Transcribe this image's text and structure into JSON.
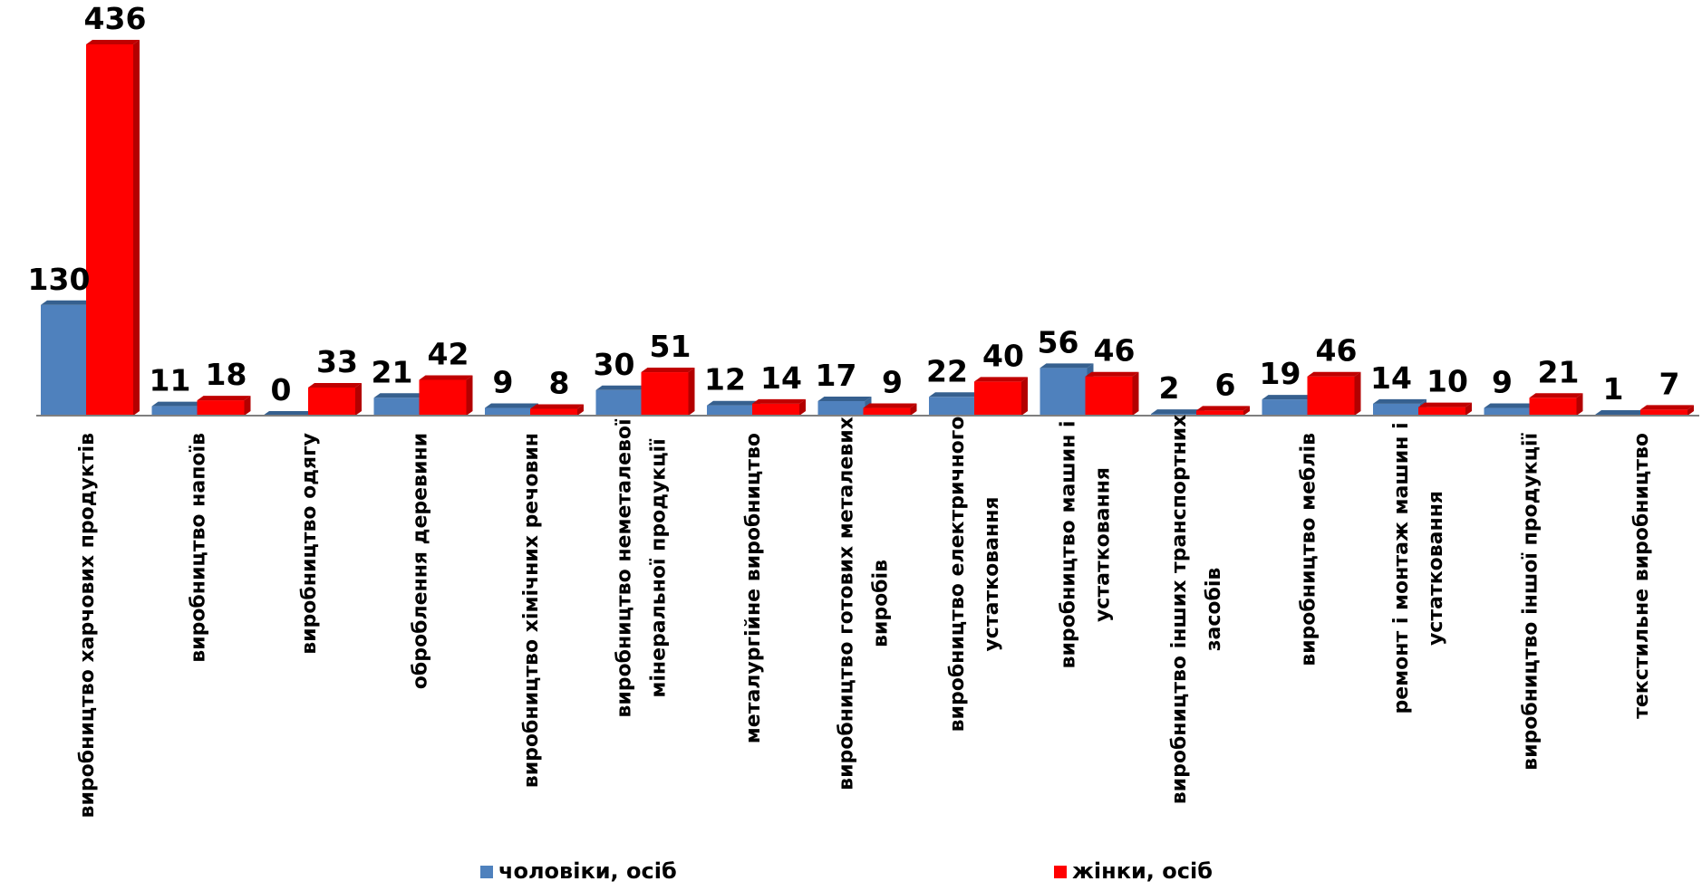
{
  "chart_data": {
    "type": "bar",
    "categories": [
      [
        "виробництво харчових продуктів"
      ],
      [
        "виробництво напоїв"
      ],
      [
        "виробництво одягу"
      ],
      [
        "оброблення  деревини"
      ],
      [
        "виробництво хімічних речовин"
      ],
      [
        "виробництво неметалевої",
        "мінеральної продукції"
      ],
      [
        "металургійне виробництво"
      ],
      [
        "виробництво готових металевих",
        "виробів"
      ],
      [
        "виробництво електричного",
        "устатковання"
      ],
      [
        "виробництво машин і",
        "устатковання"
      ],
      [
        "виробництво інших транспортних",
        "засобів"
      ],
      [
        "виробництво меблів"
      ],
      [
        "ремонт і монтаж машин і",
        "устатковання"
      ],
      [
        "виробництво іншої продукції"
      ],
      [
        "текстильне виробництво"
      ]
    ],
    "series": [
      {
        "name": "чоловіки, осіб",
        "color": "#4F81BD",
        "values": [
          130,
          11,
          0,
          21,
          9,
          30,
          12,
          17,
          22,
          56,
          2,
          19,
          14,
          9,
          1
        ]
      },
      {
        "name": "жінки, осіб",
        "color": "#FF0000",
        "values": [
          436,
          18,
          33,
          42,
          8,
          51,
          14,
          9,
          40,
          46,
          6,
          46,
          10,
          21,
          7
        ]
      }
    ],
    "ylim": [
      0,
      436
    ],
    "grid": false,
    "legend": "bottom",
    "style": "3d-bar"
  }
}
